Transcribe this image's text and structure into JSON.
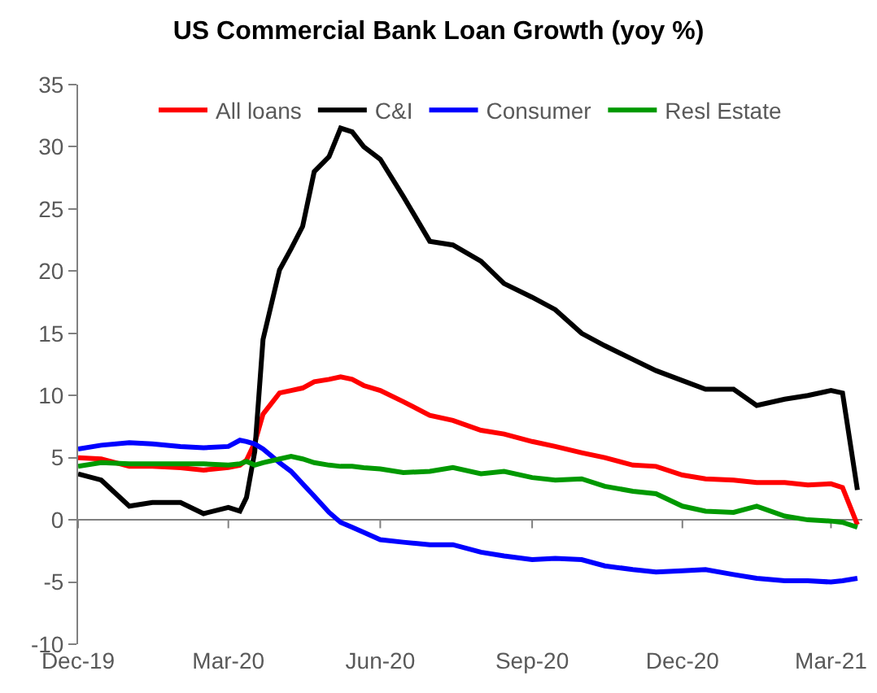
{
  "chart_data": {
    "type": "line",
    "title": "US Commercial Bank Loan Growth (yoy %)",
    "x": [
      "2019-12-01",
      "2019-12-15",
      "2020-01-01",
      "2020-01-15",
      "2020-02-01",
      "2020-02-15",
      "2020-03-01",
      "2020-03-08",
      "2020-03-12",
      "2020-03-17",
      "2020-03-22",
      "2020-04-01",
      "2020-04-08",
      "2020-04-15",
      "2020-04-22",
      "2020-05-01",
      "2020-05-08",
      "2020-05-15",
      "2020-05-22",
      "2020-06-01",
      "2020-06-15",
      "2020-07-01",
      "2020-07-15",
      "2020-08-01",
      "2020-08-15",
      "2020-09-01",
      "2020-09-15",
      "2020-10-01",
      "2020-10-15",
      "2020-11-01",
      "2020-11-15",
      "2020-12-01",
      "2020-12-15",
      "2021-01-01",
      "2021-01-15",
      "2021-02-01",
      "2021-02-15",
      "2021-03-01",
      "2021-03-08",
      "2021-03-17"
    ],
    "series": [
      {
        "name": "All loans",
        "color": "#ff0000",
        "values": [
          5.0,
          4.9,
          4.3,
          4.3,
          4.2,
          4.0,
          4.2,
          4.4,
          4.8,
          6.2,
          8.5,
          10.2,
          10.4,
          10.6,
          11.1,
          11.3,
          11.5,
          11.3,
          10.8,
          10.4,
          9.5,
          8.4,
          8.0,
          7.2,
          6.9,
          6.3,
          5.9,
          5.4,
          5.0,
          4.4,
          4.3,
          3.6,
          3.3,
          3.2,
          3.0,
          3.0,
          2.8,
          2.9,
          2.6,
          -0.4
        ]
      },
      {
        "name": "C&I",
        "color": "#000000",
        "values": [
          3.7,
          3.2,
          1.1,
          1.4,
          1.4,
          0.5,
          1.0,
          0.7,
          1.8,
          5.5,
          14.5,
          20.1,
          21.8,
          23.6,
          28.0,
          29.2,
          31.5,
          31.2,
          30.0,
          29.0,
          26.0,
          22.4,
          22.1,
          20.8,
          19.0,
          17.9,
          16.9,
          15.0,
          14.0,
          12.9,
          12.0,
          11.2,
          10.5,
          10.5,
          9.2,
          9.7,
          10.0,
          10.4,
          10.2,
          2.4
        ]
      },
      {
        "name": "Consumer",
        "color": "#0000ff",
        "values": [
          5.7,
          6.0,
          6.2,
          6.1,
          5.9,
          5.8,
          5.9,
          6.4,
          6.3,
          6.1,
          5.7,
          4.6,
          3.9,
          2.9,
          1.9,
          0.6,
          -0.2,
          -0.6,
          -1.0,
          -1.6,
          -1.8,
          -2.0,
          -2.0,
          -2.6,
          -2.9,
          -3.2,
          -3.1,
          -3.2,
          -3.7,
          -4.0,
          -4.2,
          -4.1,
          -4.0,
          -4.4,
          -4.7,
          -4.9,
          -4.9,
          -5.0,
          -4.9,
          -4.7
        ]
      },
      {
        "name": "Resl Estate",
        "color": "#009900",
        "values": [
          4.3,
          4.6,
          4.5,
          4.5,
          4.5,
          4.5,
          4.4,
          4.5,
          4.7,
          4.4,
          4.6,
          4.9,
          5.1,
          4.9,
          4.6,
          4.4,
          4.3,
          4.3,
          4.2,
          4.1,
          3.8,
          3.9,
          4.2,
          3.7,
          3.9,
          3.4,
          3.2,
          3.3,
          2.7,
          2.3,
          2.1,
          1.1,
          0.7,
          0.6,
          1.1,
          0.3,
          0.0,
          -0.1,
          -0.2,
          -0.6
        ]
      }
    ],
    "xlim": [
      "2019-12-01",
      "2021-03-20"
    ],
    "xticks": [
      {
        "value": "2019-12-01",
        "label": "Dec-19"
      },
      {
        "value": "2020-03-01",
        "label": "Mar-20"
      },
      {
        "value": "2020-06-01",
        "label": "Jun-20"
      },
      {
        "value": "2020-09-01",
        "label": "Sep-20"
      },
      {
        "value": "2020-12-01",
        "label": "Dec-20"
      },
      {
        "value": "2021-03-01",
        "label": "Mar-21"
      }
    ],
    "ylim": [
      -10,
      35
    ],
    "yticks": [
      -10,
      -5,
      0,
      5,
      10,
      15,
      20,
      25,
      30,
      35
    ],
    "legend": "top",
    "marker": "none",
    "line_style": "solid"
  }
}
